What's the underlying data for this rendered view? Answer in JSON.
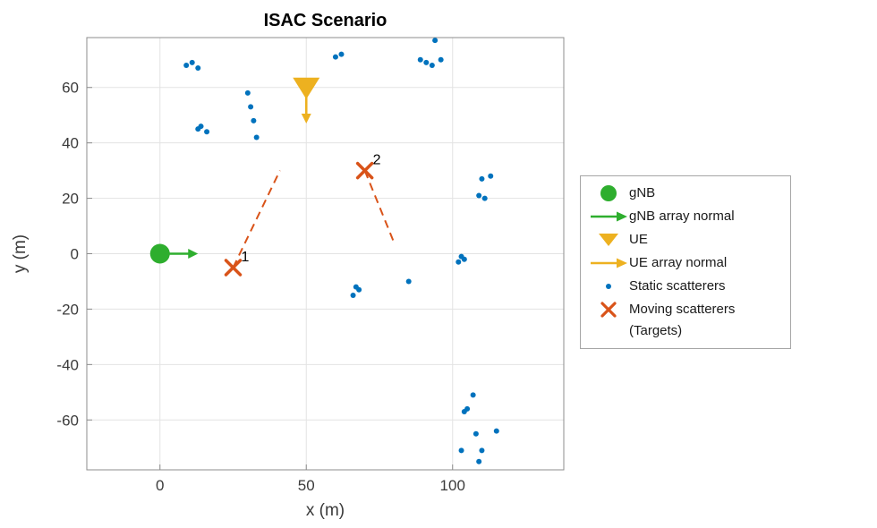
{
  "chart_data": {
    "type": "scatter",
    "title": "ISAC Scenario",
    "xlabel": "x (m)",
    "ylabel": "y (m)",
    "xlim": [
      -25,
      138
    ],
    "ylim": [
      -78,
      78
    ],
    "xticks": [
      0,
      50,
      100
    ],
    "yticks": [
      -60,
      -40,
      -20,
      0,
      20,
      40,
      60
    ],
    "grid": true,
    "colors": {
      "gnb": "#2eae2e",
      "ue": "#EDB120",
      "static": "#0072BD",
      "target": "#D95319",
      "grid": "#e3e3e3",
      "axis": "#8c8c8c",
      "text": "#3b3b3b"
    },
    "gnb": {
      "x": 0,
      "y": 0,
      "normal_dx": 13,
      "normal_dy": 0
    },
    "ue": {
      "x": 50,
      "y": 60,
      "normal_dx": 0,
      "normal_dy": -13
    },
    "static_scatterers": [
      [
        9,
        68
      ],
      [
        11,
        69
      ],
      [
        13,
        67
      ],
      [
        30,
        58
      ],
      [
        13,
        45
      ],
      [
        14,
        46
      ],
      [
        16,
        44
      ],
      [
        31,
        53
      ],
      [
        32,
        48
      ],
      [
        33,
        42
      ],
      [
        60,
        71
      ],
      [
        62,
        72
      ],
      [
        94,
        77
      ],
      [
        89,
        70
      ],
      [
        91,
        69
      ],
      [
        93,
        68
      ],
      [
        96,
        70
      ],
      [
        110,
        27
      ],
      [
        113,
        28
      ],
      [
        109,
        21
      ],
      [
        111,
        20
      ],
      [
        102,
        -3
      ],
      [
        103,
        -1
      ],
      [
        104,
        -2
      ],
      [
        66,
        -15
      ],
      [
        67,
        -12
      ],
      [
        68,
        -13
      ],
      [
        85,
        -10
      ],
      [
        107,
        -51
      ],
      [
        105,
        -56
      ],
      [
        104,
        -57
      ],
      [
        115,
        -64
      ],
      [
        108,
        -65
      ],
      [
        103,
        -71
      ],
      [
        110,
        -71
      ],
      [
        109,
        -75
      ]
    ],
    "targets": [
      {
        "id": "1",
        "x": 25,
        "y": -5,
        "trail_to": [
          41,
          30
        ]
      },
      {
        "id": "2",
        "x": 70,
        "y": 30,
        "trail_to": [
          80,
          4
        ]
      }
    ]
  },
  "legend": {
    "items": [
      {
        "label": "gNB",
        "icon": "gnb-circle"
      },
      {
        "label": "gNB array normal",
        "icon": "green-arrow"
      },
      {
        "label": "UE",
        "icon": "ue-triangle"
      },
      {
        "label": "UE array normal",
        "icon": "yellow-arrow"
      },
      {
        "label": "Static scatterers",
        "icon": "blue-dot"
      },
      {
        "label": "Moving scatterers\n(Targets)",
        "icon": "orange-x"
      }
    ]
  }
}
